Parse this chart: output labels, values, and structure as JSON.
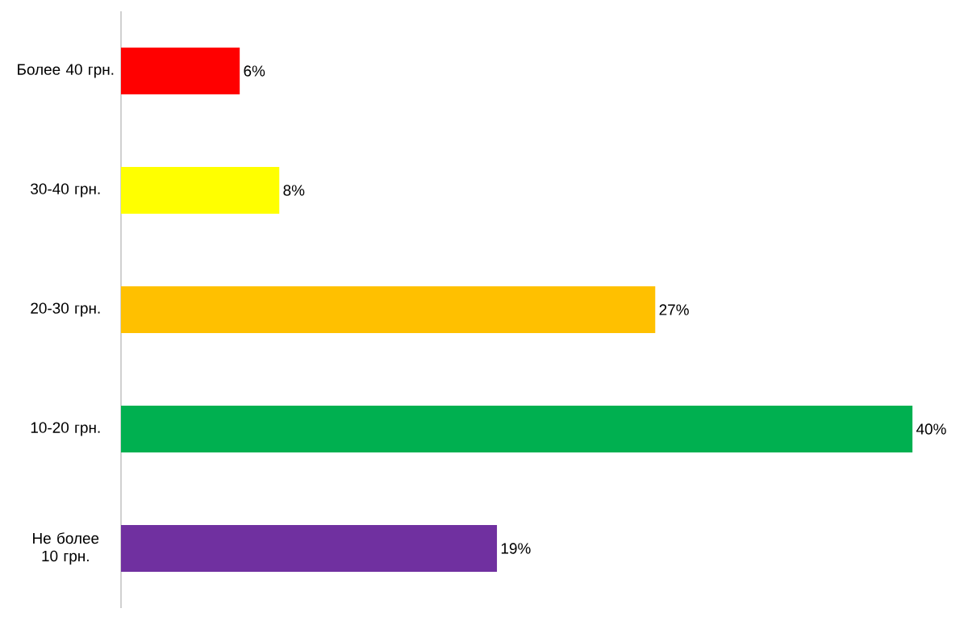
{
  "chart_data": {
    "type": "bar",
    "orientation": "horizontal",
    "categories": [
      "Более 40 грн.",
      "30-40 грн.",
      "20-30 грн.",
      "10-20 грн.",
      "Не более 10 грн."
    ],
    "values": [
      6,
      8,
      27,
      40,
      19
    ],
    "colors": [
      "#ff0000",
      "#ffff00",
      "#ffc000",
      "#00b050",
      "#7030a0"
    ],
    "value_labels": [
      "6%",
      "8%",
      "27%",
      "40%",
      "19%"
    ]
  }
}
